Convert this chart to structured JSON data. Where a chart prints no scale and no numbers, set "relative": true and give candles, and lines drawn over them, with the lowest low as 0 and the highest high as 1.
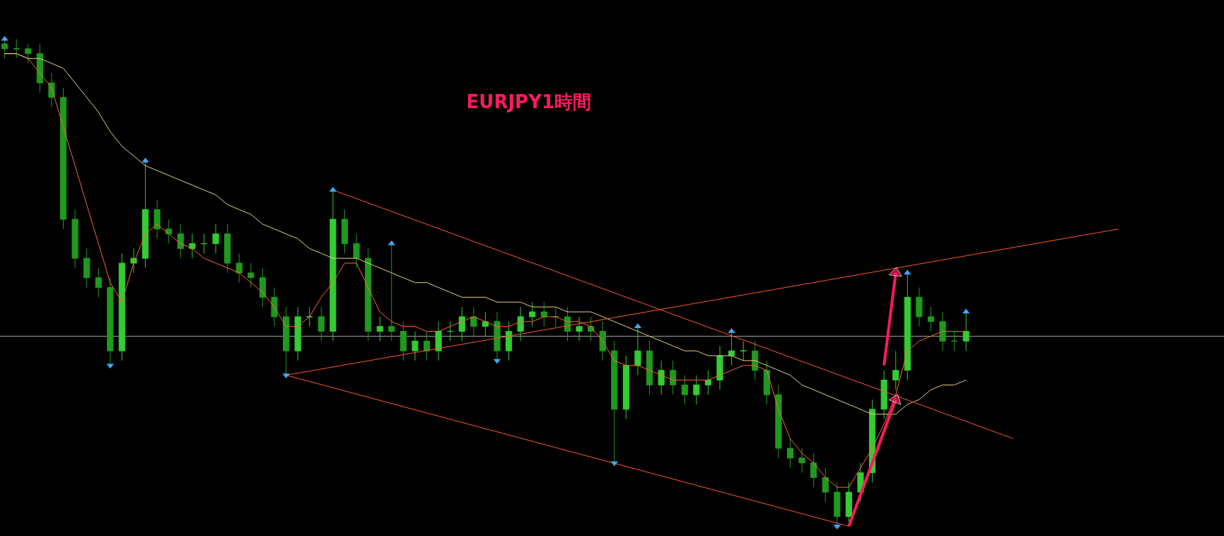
{
  "chart_data": {
    "type": "candlestick",
    "title": "EURJPY1時間",
    "relative": true,
    "grid": false,
    "tick_labels": false,
    "categories": [
      null,
      null,
      null,
      null,
      null,
      null,
      null,
      null,
      null,
      null,
      null,
      null,
      null,
      null,
      null,
      null,
      null,
      null,
      null,
      null,
      null,
      null,
      null,
      null,
      null,
      null,
      null,
      null,
      null,
      null,
      null,
      null,
      null,
      null,
      null,
      null,
      null,
      null,
      null,
      null,
      null,
      null,
      null,
      null,
      null,
      null,
      null,
      null,
      null,
      null,
      null,
      null,
      null,
      null,
      null,
      null,
      null,
      null,
      null,
      null,
      null,
      null,
      null,
      null,
      null,
      null,
      null,
      null,
      null,
      null,
      null,
      null,
      null,
      null,
      null,
      null,
      null,
      null,
      null,
      null,
      null,
      null,
      null,
      null,
      null,
      null,
      null,
      null,
      null,
      null,
      null,
      null,
      null,
      null,
      null,
      null,
      null,
      null,
      null,
      null,
      null,
      null,
      null,
      null,
      null
    ],
    "ohlc": [
      [
        0.99,
        1.0,
        0.96,
        0.98
      ],
      [
        0.98,
        1.0,
        0.96,
        0.98
      ],
      [
        0.98,
        0.99,
        0.95,
        0.97
      ],
      [
        0.97,
        0.99,
        0.89,
        0.91
      ],
      [
        0.91,
        0.93,
        0.86,
        0.88
      ],
      [
        0.88,
        0.9,
        0.61,
        0.63
      ],
      [
        0.63,
        0.65,
        0.53,
        0.55
      ],
      [
        0.55,
        0.57,
        0.49,
        0.51
      ],
      [
        0.51,
        0.53,
        0.47,
        0.49
      ],
      [
        0.49,
        0.51,
        0.33,
        0.36
      ],
      [
        0.36,
        0.56,
        0.34,
        0.54
      ],
      [
        0.54,
        0.57,
        0.52,
        0.55
      ],
      [
        0.55,
        0.75,
        0.53,
        0.65
      ],
      [
        0.65,
        0.67,
        0.59,
        0.61
      ],
      [
        0.61,
        0.63,
        0.58,
        0.6
      ],
      [
        0.6,
        0.62,
        0.55,
        0.57
      ],
      [
        0.57,
        0.6,
        0.55,
        0.58
      ],
      [
        0.58,
        0.6,
        0.56,
        0.58
      ],
      [
        0.58,
        0.62,
        0.56,
        0.6
      ],
      [
        0.6,
        0.62,
        0.52,
        0.54
      ],
      [
        0.54,
        0.56,
        0.5,
        0.52
      ],
      [
        0.52,
        0.54,
        0.49,
        0.51
      ],
      [
        0.51,
        0.53,
        0.45,
        0.47
      ],
      [
        0.47,
        0.49,
        0.41,
        0.43
      ],
      [
        0.43,
        0.45,
        0.31,
        0.36
      ],
      [
        0.36,
        0.45,
        0.34,
        0.43
      ],
      [
        0.43,
        0.45,
        0.41,
        0.43
      ],
      [
        0.43,
        0.45,
        0.38,
        0.4
      ],
      [
        0.4,
        0.69,
        0.38,
        0.63
      ],
      [
        0.63,
        0.65,
        0.56,
        0.58
      ],
      [
        0.58,
        0.6,
        0.53,
        0.55
      ],
      [
        0.55,
        0.57,
        0.38,
        0.4
      ],
      [
        0.4,
        0.43,
        0.38,
        0.41
      ],
      [
        0.41,
        0.58,
        0.38,
        0.4
      ],
      [
        0.4,
        0.42,
        0.34,
        0.36
      ],
      [
        0.36,
        0.4,
        0.34,
        0.38
      ],
      [
        0.38,
        0.4,
        0.34,
        0.36
      ],
      [
        0.36,
        0.42,
        0.34,
        0.4
      ],
      [
        0.4,
        0.42,
        0.38,
        0.4
      ],
      [
        0.4,
        0.45,
        0.38,
        0.43
      ],
      [
        0.43,
        0.45,
        0.39,
        0.41
      ],
      [
        0.41,
        0.44,
        0.39,
        0.42
      ],
      [
        0.42,
        0.44,
        0.34,
        0.36
      ],
      [
        0.36,
        0.42,
        0.34,
        0.4
      ],
      [
        0.4,
        0.45,
        0.38,
        0.43
      ],
      [
        0.43,
        0.46,
        0.41,
        0.44
      ],
      [
        0.44,
        0.46,
        0.41,
        0.43
      ],
      [
        0.43,
        0.45,
        0.41,
        0.43
      ],
      [
        0.43,
        0.45,
        0.38,
        0.4
      ],
      [
        0.4,
        0.43,
        0.38,
        0.41
      ],
      [
        0.41,
        0.43,
        0.38,
        0.4
      ],
      [
        0.4,
        0.42,
        0.34,
        0.36
      ],
      [
        0.36,
        0.38,
        0.13,
        0.24
      ],
      [
        0.24,
        0.35,
        0.22,
        0.33
      ],
      [
        0.33,
        0.41,
        0.31,
        0.36
      ],
      [
        0.36,
        0.38,
        0.27,
        0.29
      ],
      [
        0.29,
        0.34,
        0.27,
        0.32
      ],
      [
        0.32,
        0.34,
        0.27,
        0.29
      ],
      [
        0.29,
        0.31,
        0.25,
        0.27
      ],
      [
        0.27,
        0.31,
        0.25,
        0.29
      ],
      [
        0.29,
        0.32,
        0.27,
        0.3
      ],
      [
        0.3,
        0.37,
        0.28,
        0.35
      ],
      [
        0.35,
        0.4,
        0.33,
        0.36
      ],
      [
        0.36,
        0.38,
        0.34,
        0.36
      ],
      [
        0.36,
        0.38,
        0.3,
        0.32
      ],
      [
        0.32,
        0.34,
        0.25,
        0.27
      ],
      [
        0.27,
        0.29,
        0.14,
        0.16
      ],
      [
        0.16,
        0.18,
        0.12,
        0.14
      ],
      [
        0.14,
        0.16,
        0.11,
        0.13
      ],
      [
        0.13,
        0.15,
        0.08,
        0.1
      ],
      [
        0.1,
        0.12,
        0.05,
        0.07
      ],
      [
        0.07,
        0.09,
        0.0,
        0.02
      ],
      [
        0.02,
        0.09,
        0.01,
        0.07
      ],
      [
        0.07,
        0.13,
        0.05,
        0.11
      ],
      [
        0.11,
        0.26,
        0.09,
        0.24
      ],
      [
        0.24,
        0.32,
        0.22,
        0.3
      ],
      [
        0.3,
        0.36,
        0.28,
        0.32
      ],
      [
        0.32,
        0.52,
        0.3,
        0.47
      ],
      [
        0.47,
        0.49,
        0.41,
        0.43
      ],
      [
        0.43,
        0.45,
        0.4,
        0.42
      ],
      [
        0.42,
        0.44,
        0.36,
        0.38
      ],
      [
        0.38,
        0.4,
        0.36,
        0.38
      ],
      [
        0.38,
        0.44,
        0.36,
        0.4
      ],
      null,
      null,
      null,
      null,
      null,
      null,
      null,
      null,
      null,
      null,
      null,
      null,
      null,
      null,
      null,
      null,
      null,
      null,
      null,
      null,
      null,
      null
    ],
    "series": [
      {
        "type": "line",
        "color": "#ff6633",
        "values": [
          0.97,
          0.97,
          0.96,
          0.93,
          0.9,
          0.82,
          0.74,
          0.66,
          0.58,
          0.5,
          0.46,
          0.54,
          0.6,
          0.62,
          0.6,
          0.58,
          0.57,
          0.55,
          0.54,
          0.53,
          0.52,
          0.5,
          0.48,
          0.45,
          0.41,
          0.41,
          0.43,
          0.47,
          0.5,
          0.54,
          0.54,
          0.49,
          0.44,
          0.42,
          0.41,
          0.41,
          0.4,
          0.4,
          0.41,
          0.42,
          0.43,
          0.42,
          0.41,
          0.41,
          0.42,
          0.42,
          0.43,
          0.43,
          0.42,
          0.42,
          0.41,
          0.38,
          0.34,
          0.33,
          0.33,
          0.32,
          0.31,
          0.3,
          0.3,
          0.3,
          0.3,
          0.31,
          0.32,
          0.33,
          0.33,
          0.32,
          0.24,
          0.18,
          0.15,
          0.13,
          0.1,
          0.08,
          0.08,
          0.12,
          0.16,
          0.21,
          0.27,
          0.36,
          0.38,
          0.39,
          0.4,
          0.4,
          0.4,
          null,
          null,
          null,
          null,
          null,
          null,
          null,
          null,
          null,
          null,
          null,
          null,
          null,
          null,
          null,
          null,
          null,
          null,
          null,
          null,
          null,
          null
        ]
      },
      {
        "type": "line",
        "color": "#e6d27a",
        "values": [
          0.97,
          0.97,
          0.96,
          0.96,
          0.95,
          0.94,
          0.91,
          0.88,
          0.85,
          0.81,
          0.78,
          0.76,
          0.74,
          0.73,
          0.72,
          0.71,
          0.7,
          0.69,
          0.68,
          0.66,
          0.65,
          0.64,
          0.62,
          0.61,
          0.6,
          0.59,
          0.57,
          0.56,
          0.55,
          0.55,
          0.55,
          0.54,
          0.53,
          0.52,
          0.51,
          0.5,
          0.5,
          0.49,
          0.48,
          0.47,
          0.47,
          0.47,
          0.46,
          0.46,
          0.46,
          0.45,
          0.45,
          0.45,
          0.44,
          0.44,
          0.44,
          0.43,
          0.42,
          0.41,
          0.4,
          0.39,
          0.38,
          0.37,
          0.36,
          0.36,
          0.35,
          0.35,
          0.35,
          0.34,
          0.34,
          0.33,
          0.32,
          0.31,
          0.29,
          0.28,
          0.27,
          0.26,
          0.25,
          0.24,
          0.23,
          0.23,
          0.23,
          0.25,
          0.26,
          0.28,
          0.29,
          0.29,
          0.3,
          null,
          null,
          null,
          null,
          null,
          null,
          null,
          null,
          null,
          null,
          null,
          null,
          null,
          null,
          null,
          null,
          null,
          null,
          null,
          null,
          null,
          null
        ]
      },
      {
        "type": "line",
        "color": "#ff5a28",
        "values": [
          null,
          null,
          null,
          null,
          null,
          null,
          null,
          null,
          null,
          null,
          null,
          null,
          null,
          null,
          null,
          null,
          null,
          null,
          null,
          null,
          null,
          null,
          null,
          null,
          null,
          null,
          null,
          null,
          0.69,
          null,
          null,
          null,
          null,
          null,
          null,
          null,
          null,
          null,
          null,
          null,
          null,
          null,
          null,
          null,
          null,
          null,
          null,
          null,
          null,
          null,
          null,
          null,
          null,
          null,
          null,
          null,
          null,
          null,
          null,
          null,
          null,
          null,
          null,
          null,
          null,
          null,
          null,
          null,
          null,
          null,
          null,
          null,
          null,
          null,
          null,
          null,
          null,
          null,
          null,
          null,
          null,
          null,
          null,
          null,
          null,
          null,
          0.18,
          null,
          null,
          null,
          null,
          null,
          null,
          null,
          null,
          null,
          null,
          null,
          null,
          null,
          null,
          null,
          null,
          null,
          null
        ]
      },
      {
        "type": "line",
        "color": "#ff5a28",
        "values": [
          null,
          null,
          null,
          null,
          null,
          null,
          null,
          null,
          null,
          null,
          null,
          null,
          null,
          null,
          null,
          null,
          null,
          null,
          null,
          null,
          null,
          null,
          null,
          null,
          0.31,
          null,
          null,
          null,
          null,
          null,
          null,
          null,
          null,
          null,
          null,
          null,
          null,
          null,
          null,
          null,
          null,
          null,
          null,
          null,
          null,
          null,
          null,
          null,
          null,
          null,
          null,
          null,
          null,
          null,
          null,
          null,
          null,
          null,
          null,
          null,
          null,
          null,
          null,
          null,
          null,
          null,
          null,
          null,
          null,
          null,
          null,
          null,
          0.0,
          null,
          null,
          null,
          null,
          null,
          null,
          null,
          null,
          null,
          null,
          null,
          null,
          null,
          null,
          null,
          null,
          null,
          null,
          null,
          null,
          null,
          null,
          null,
          null,
          null,
          null,
          null,
          null,
          null,
          null,
          null,
          null
        ]
      },
      {
        "type": "line",
        "color": "#ff5a28",
        "values": [
          null,
          null,
          null,
          null,
          null,
          null,
          null,
          null,
          null,
          null,
          null,
          null,
          null,
          null,
          null,
          null,
          null,
          null,
          null,
          null,
          null,
          null,
          null,
          null,
          0.31,
          null,
          null,
          null,
          null,
          null,
          null,
          null,
          null,
          null,
          null,
          null,
          null,
          null,
          null,
          null,
          null,
          null,
          null,
          null,
          null,
          null,
          null,
          null,
          null,
          null,
          null,
          null,
          null,
          null,
          null,
          null,
          null,
          null,
          null,
          null,
          null,
          null,
          null,
          null,
          null,
          null,
          null,
          null,
          null,
          null,
          null,
          null,
          null,
          null,
          null,
          null,
          null,
          null,
          null,
          null,
          null,
          null,
          null,
          null,
          null,
          null,
          null,
          null,
          null,
          null,
          null,
          null,
          null,
          null,
          null,
          0.61,
          null,
          null,
          null,
          null,
          null,
          null,
          null,
          null,
          null
        ]
      },
      {
        "type": "scatter",
        "marker": "triangle",
        "color": "#3fa9f5",
        "values": [
          1.0,
          null,
          null,
          null,
          null,
          null,
          null,
          null,
          null,
          null,
          null,
          null,
          0.75,
          null,
          null,
          null,
          null,
          null,
          null,
          null,
          null,
          null,
          null,
          null,
          null,
          null,
          null,
          null,
          0.69,
          null,
          null,
          null,
          null,
          0.58,
          null,
          null,
          null,
          null,
          null,
          null,
          null,
          null,
          null,
          null,
          null,
          null,
          null,
          null,
          null,
          null,
          null,
          null,
          null,
          null,
          0.41,
          null,
          null,
          null,
          null,
          null,
          null,
          null,
          0.4,
          null,
          null,
          null,
          null,
          null,
          null,
          null,
          null,
          null,
          null,
          null,
          null,
          null,
          null,
          0.52,
          null,
          null,
          null,
          null,
          0.44,
          null,
          null,
          null,
          null,
          null,
          null,
          null,
          null,
          null,
          null,
          null,
          null,
          null,
          null,
          null,
          null,
          null,
          null,
          null,
          null,
          null,
          null
        ]
      },
      {
        "type": "scatter",
        "marker": "triangle-down",
        "color": "#3fa9f5",
        "values": [
          null,
          null,
          null,
          null,
          null,
          null,
          null,
          null,
          null,
          0.33,
          null,
          null,
          null,
          null,
          null,
          null,
          null,
          null,
          null,
          null,
          null,
          null,
          null,
          null,
          0.31,
          null,
          null,
          null,
          null,
          null,
          null,
          null,
          null,
          null,
          null,
          null,
          null,
          null,
          null,
          null,
          null,
          null,
          0.34,
          null,
          null,
          null,
          null,
          null,
          null,
          null,
          null,
          null,
          0.13,
          null,
          null,
          null,
          null,
          null,
          null,
          null,
          null,
          null,
          null,
          null,
          null,
          null,
          null,
          null,
          null,
          null,
          null,
          0.0,
          null,
          null,
          null,
          null,
          null,
          null,
          null,
          null,
          null,
          null,
          null,
          null,
          null,
          null,
          null,
          null,
          null,
          null,
          null,
          null,
          null,
          null,
          null,
          null,
          null,
          null,
          null,
          null,
          null,
          null,
          null,
          null,
          null
        ]
      },
      {
        "type": "line",
        "marker": "triangle",
        "color": "#ff1a5e",
        "values": [
          null,
          null,
          null,
          null,
          null,
          null,
          null,
          null,
          null,
          null,
          null,
          null,
          null,
          null,
          null,
          null,
          null,
          null,
          null,
          null,
          null,
          null,
          null,
          null,
          null,
          null,
          null,
          null,
          null,
          null,
          null,
          null,
          null,
          null,
          null,
          null,
          null,
          null,
          null,
          null,
          null,
          null,
          null,
          null,
          null,
          null,
          null,
          null,
          null,
          null,
          null,
          null,
          null,
          null,
          null,
          null,
          null,
          null,
          null,
          null,
          null,
          null,
          null,
          null,
          null,
          null,
          null,
          null,
          null,
          null,
          null,
          null,
          0.0,
          null,
          null,
          null,
          0.26,
          null,
          null,
          null,
          null,
          null,
          null,
          null,
          null,
          null,
          null,
          null,
          null,
          null,
          null,
          null,
          null,
          null,
          null,
          null,
          null,
          null,
          null,
          null,
          null,
          null,
          null,
          null,
          null
        ]
      },
      {
        "type": "line",
        "marker": "triangle",
        "color": "#ff1a5e",
        "values": [
          null,
          null,
          null,
          null,
          null,
          null,
          null,
          null,
          null,
          null,
          null,
          null,
          null,
          null,
          null,
          null,
          null,
          null,
          null,
          null,
          null,
          null,
          null,
          null,
          null,
          null,
          null,
          null,
          null,
          null,
          null,
          null,
          null,
          null,
          null,
          null,
          null,
          null,
          null,
          null,
          null,
          null,
          null,
          null,
          null,
          null,
          null,
          null,
          null,
          null,
          null,
          null,
          null,
          null,
          null,
          null,
          null,
          null,
          null,
          null,
          null,
          null,
          null,
          null,
          null,
          null,
          null,
          null,
          null,
          null,
          null,
          null,
          null,
          null,
          null,
          0.33,
          0.52,
          null,
          null,
          null,
          null,
          null,
          null,
          null,
          null,
          null,
          null,
          null,
          null,
          null,
          null,
          null,
          null,
          null,
          null,
          null,
          null,
          null,
          null,
          null,
          null,
          null,
          null,
          null,
          null
        ]
      }
    ],
    "ref_lines": [
      {
        "axis": "y",
        "value": 0.39,
        "color": "#a0a0a0"
      }
    ]
  }
}
